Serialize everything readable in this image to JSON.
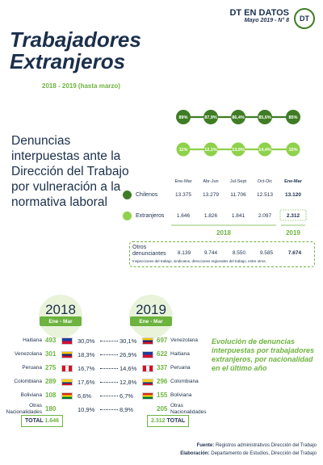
{
  "header": {
    "brand": "DT EN DATOS",
    "issue": "Mayo 2019 - N° 8",
    "logo": "DT"
  },
  "title_line1": "Trabajadores",
  "title_line2": "Extranjeros",
  "period": "2018 - 2019 (hasta marzo)",
  "subtitle": "Denuncias interpuestas ante la Dirección del Trabajo por vulneración a la normativa laboral",
  "chart_data": {
    "type": "line",
    "categories": [
      "Ene-Mar",
      "Abr-Jun",
      "Jul-Sept",
      "Oct-Dic",
      "Ene-Mar"
    ],
    "year_groups": [
      {
        "label": "2018",
        "span": 4
      },
      {
        "label": "2019",
        "span": 1
      }
    ],
    "series": [
      {
        "name": "Chilenos",
        "values": [
          13375,
          13279,
          11706,
          12513,
          13120
        ],
        "labels": [
          "13.375",
          "13.279",
          "11.706",
          "12.513",
          "13.120"
        ],
        "share_labels": [
          "89%",
          "87,9%",
          "86,4%",
          "85,6%",
          "85%"
        ],
        "color": "#3f7d24"
      },
      {
        "name": "Extranjeros",
        "values": [
          1646,
          1826,
          1841,
          2097,
          2312
        ],
        "labels": [
          "1.646",
          "1.826",
          "1.841",
          "2.097",
          "2.312"
        ],
        "share_labels": [
          "11%",
          "12,1%",
          "13,6%",
          "14,4%",
          "15%"
        ],
        "color": "#8ed14a"
      }
    ],
    "others": {
      "name": "Otros denunciantes",
      "labels": [
        "8.139",
        "9.744",
        "8.550",
        "9.585",
        "7.674"
      ],
      "note": "Inspecciones del trabajo, sindicatos, direcciones regionales del trabajo, entre otros."
    }
  },
  "comparison": {
    "left_year": "2018",
    "right_year": "2019",
    "period_badge": "Ene - Mar",
    "rows": [
      {
        "country": "Haitiana",
        "left": "493",
        "left_pct": "30,0%",
        "right_pct": "30,1%",
        "right": "697",
        "right_country": "Venezolana",
        "flag_left": "haiti",
        "flag_right": "venezuela"
      },
      {
        "country": "Venezolana",
        "left": "301",
        "left_pct": "18,3%",
        "right_pct": "26,9%",
        "right": "622",
        "right_country": "Haitiana",
        "flag_left": "venezuela",
        "flag_right": "haiti"
      },
      {
        "country": "Peruana",
        "left": "275",
        "left_pct": "16,7%",
        "right_pct": "14,6%",
        "right": "337",
        "right_country": "Peruana",
        "flag_left": "peru",
        "flag_right": "peru"
      },
      {
        "country": "Colombiana",
        "left": "289",
        "left_pct": "17,6%",
        "right_pct": "12,8%",
        "right": "296",
        "right_country": "Colombiana",
        "flag_left": "colombia",
        "flag_right": "colombia"
      },
      {
        "country": "Boliviana",
        "left": "108",
        "left_pct": "6,6%",
        "right_pct": "6,7%",
        "right": "155",
        "right_country": "Boliviana",
        "flag_left": "bolivia",
        "flag_right": "bolivia"
      },
      {
        "country": "Otras Nacionalidades",
        "left": "180",
        "left_pct": "10,9%",
        "right_pct": "8,9%",
        "right": "205",
        "right_country": "Otras Nacionalidades",
        "flag_left": "",
        "flag_right": ""
      }
    ],
    "total_left_label": "TOTAL",
    "total_left": "1.646",
    "total_right": "2.312",
    "total_right_label": "TOTAL"
  },
  "evolution_caption": "Evolución de denuncias interpuestas por trabajadores extranjeros, por nacionalidad en el último año",
  "footer": {
    "source_label": "Fuente:",
    "source": "Registros administrativos Dirección del Trabajo",
    "author_label": "Elaboración:",
    "author": "Departamento de Estudios, Dirección del Trabajo"
  },
  "colors": {
    "navy": "#1b2f4b",
    "dark_green": "#3f7d24",
    "light_green": "#8ed14a",
    "accent_green": "#6db33f"
  }
}
